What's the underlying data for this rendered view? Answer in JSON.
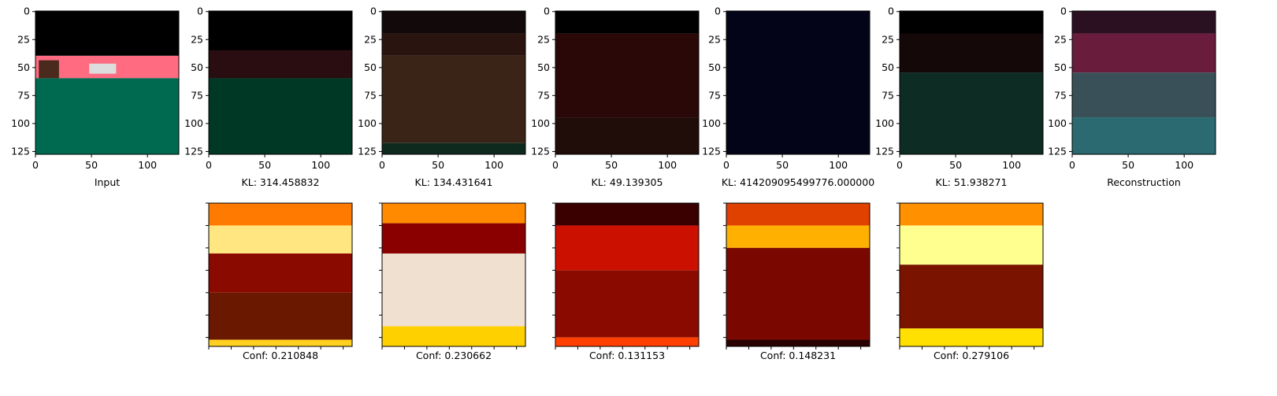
{
  "panels": [
    {
      "label": "Input",
      "xticks": [
        0,
        50,
        100
      ],
      "yticks": [
        0,
        25,
        50,
        75,
        100,
        125
      ]
    },
    {
      "label": "KL: 314.458832",
      "xticks": [
        0,
        50,
        100
      ],
      "yticks": [
        0,
        25,
        50,
        75,
        100,
        125
      ]
    },
    {
      "label": "KL: 134.431641",
      "xticks": [
        0,
        50,
        100
      ],
      "yticks": [
        0,
        25,
        50,
        75,
        100,
        125
      ]
    },
    {
      "label": "KL: 49.139305",
      "xticks": [
        0,
        50,
        100
      ],
      "yticks": [
        0,
        25,
        50,
        75,
        100,
        125
      ]
    },
    {
      "label": "KL: 414209095499776.000000",
      "xticks": [
        0,
        50,
        100
      ],
      "yticks": [
        0,
        25,
        50,
        75,
        100,
        125
      ]
    },
    {
      "label": "KL: 51.938271",
      "xticks": [
        0,
        50,
        100
      ],
      "yticks": [
        0,
        25,
        50,
        75,
        100,
        125
      ]
    },
    {
      "label": "Reconstruction",
      "xticks": [
        0,
        50,
        100
      ],
      "yticks": [
        0,
        25,
        50,
        75,
        100,
        125
      ]
    }
  ],
  "conf_panels": [
    {
      "label": "Conf: 0.210848"
    },
    {
      "label": "Conf: 0.230662"
    },
    {
      "label": "Conf: 0.131153"
    },
    {
      "label": "Conf: 0.148231"
    },
    {
      "label": "Conf: 0.279106"
    }
  ]
}
